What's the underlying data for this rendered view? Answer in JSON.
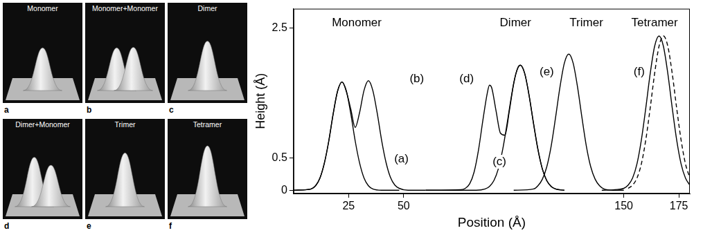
{
  "panels": [
    {
      "title": "Monomer",
      "letter": "a",
      "peaks": [
        1.67
      ]
    },
    {
      "title": "Monomer+Monomer",
      "letter": "b",
      "peaks": [
        1.67,
        1.69
      ]
    },
    {
      "title": "Dimer",
      "letter": "c",
      "peaks": [
        1.93
      ]
    },
    {
      "title": "Dimer+Monomer",
      "letter": "d",
      "peaks": [
        1.93,
        1.62
      ]
    },
    {
      "title": "Trimer",
      "letter": "e",
      "peaks": [
        2.1
      ]
    },
    {
      "title": "Tetramer",
      "letter": "f",
      "peaks": [
        2.38
      ]
    }
  ],
  "chart_data": {
    "type": "line",
    "x_label": "Position (Å)",
    "y_label": "Height (Å)",
    "xlim": [
      0,
      180
    ],
    "ylim": [
      -0.05,
      2.8
    ],
    "xticks": [
      25,
      50,
      150,
      175
    ],
    "yticks": [
      0,
      0.5,
      2.5
    ],
    "grid": false,
    "series": [
      {
        "color": "#000000",
        "line_style": "solid",
        "x": [
          0,
          6,
          8,
          10,
          12,
          14,
          16,
          18,
          20,
          22,
          24,
          26,
          28,
          30,
          32,
          34,
          36,
          40,
          48
        ],
        "values": [
          0.0,
          0.01,
          0.02,
          0.07,
          0.19,
          0.42,
          0.76,
          1.18,
          1.53,
          1.67,
          1.53,
          1.18,
          0.76,
          0.42,
          0.19,
          0.07,
          0.02,
          0.0,
          0.0
        ]
      },
      {
        "color": "#000000",
        "line_style": "solid",
        "x": [
          0,
          6,
          8,
          10,
          12,
          14,
          16,
          18,
          20,
          22,
          24,
          26,
          28,
          30,
          32,
          34,
          36,
          38,
          40,
          42,
          44,
          46,
          48,
          52,
          60
        ],
        "values": [
          0.0,
          0.01,
          0.02,
          0.07,
          0.19,
          0.42,
          0.76,
          1.18,
          1.53,
          1.67,
          1.52,
          1.25,
          0.97,
          1.2,
          1.54,
          1.69,
          1.54,
          1.19,
          0.77,
          0.43,
          0.2,
          0.08,
          0.03,
          0.0,
          0.0
        ]
      },
      {
        "color": "#000000",
        "line_style": "solid",
        "x": [
          60,
          83,
          87,
          89,
          91,
          93,
          95,
          97,
          99,
          101,
          103,
          105,
          107,
          109,
          111,
          113,
          115,
          117,
          119,
          123
        ],
        "values": [
          0.0,
          0.0,
          0.02,
          0.06,
          0.15,
          0.33,
          0.63,
          1.03,
          1.46,
          1.8,
          1.93,
          1.8,
          1.46,
          1.03,
          0.63,
          0.33,
          0.15,
          0.06,
          0.02,
          0.0
        ]
      },
      {
        "color": "#000000",
        "line_style": "solid",
        "x": [
          60,
          76,
          78,
          80,
          82,
          84,
          86,
          88,
          89,
          90,
          92,
          94,
          96,
          98,
          100,
          102,
          103,
          105,
          107,
          109,
          111,
          113,
          115,
          117,
          119,
          123
        ],
        "values": [
          0.0,
          0.01,
          0.03,
          0.1,
          0.28,
          0.62,
          1.08,
          1.5,
          1.62,
          1.58,
          1.22,
          0.88,
          0.85,
          1.22,
          1.65,
          1.9,
          1.93,
          1.8,
          1.46,
          1.03,
          0.63,
          0.33,
          0.15,
          0.06,
          0.02,
          0.0
        ]
      },
      {
        "color": "#000000",
        "line_style": "solid",
        "x": [
          100,
          109,
          111,
          113,
          115,
          117,
          119,
          121,
          123,
          125,
          127,
          129,
          131,
          133,
          135,
          137,
          139,
          141,
          145,
          150
        ],
        "values": [
          0.0,
          0.02,
          0.07,
          0.17,
          0.36,
          0.68,
          1.12,
          1.59,
          1.96,
          2.1,
          1.96,
          1.59,
          1.12,
          0.68,
          0.36,
          0.17,
          0.07,
          0.02,
          0.0,
          0.0
        ]
      },
      {
        "color": "#000000",
        "line_style": "solid",
        "x": [
          140,
          146,
          150,
          152,
          154,
          156,
          158,
          160,
          162,
          164,
          166,
          168,
          170,
          172,
          174,
          176,
          178,
          180
        ],
        "values": [
          0.0,
          0.01,
          0.03,
          0.08,
          0.19,
          0.41,
          0.78,
          1.27,
          1.8,
          2.22,
          2.38,
          2.22,
          1.8,
          1.27,
          0.78,
          0.41,
          0.19,
          0.08
        ]
      },
      {
        "color": "#000000",
        "line_style": "dashed",
        "x": [
          152,
          154,
          156,
          158,
          160,
          162,
          164,
          166,
          168,
          170,
          172,
          174,
          176,
          178,
          180
        ],
        "values": [
          0.03,
          0.08,
          0.19,
          0.41,
          0.78,
          1.27,
          1.8,
          2.22,
          2.38,
          2.22,
          1.8,
          1.27,
          0.78,
          0.41,
          0.19
        ]
      }
    ],
    "annotations": [
      {
        "text": "Monomer",
        "x": 28.7,
        "y": 2.58
      },
      {
        "text": "Dimer",
        "x": 100.8,
        "y": 2.58
      },
      {
        "text": "Trimer",
        "x": 133,
        "y": 2.58
      },
      {
        "text": "Tetramer",
        "x": 164,
        "y": 2.58
      },
      {
        "text": "(a)",
        "x": 49,
        "y": 0.48
      },
      {
        "text": "(b)",
        "x": 56,
        "y": 1.72
      },
      {
        "text": "(c)",
        "x": 93.5,
        "y": 0.44
      },
      {
        "text": "(d)",
        "x": 78.6,
        "y": 1.72
      },
      {
        "text": "(e)",
        "x": 115,
        "y": 1.82
      },
      {
        "text": "(f)",
        "x": 157,
        "y": 1.82
      }
    ]
  }
}
